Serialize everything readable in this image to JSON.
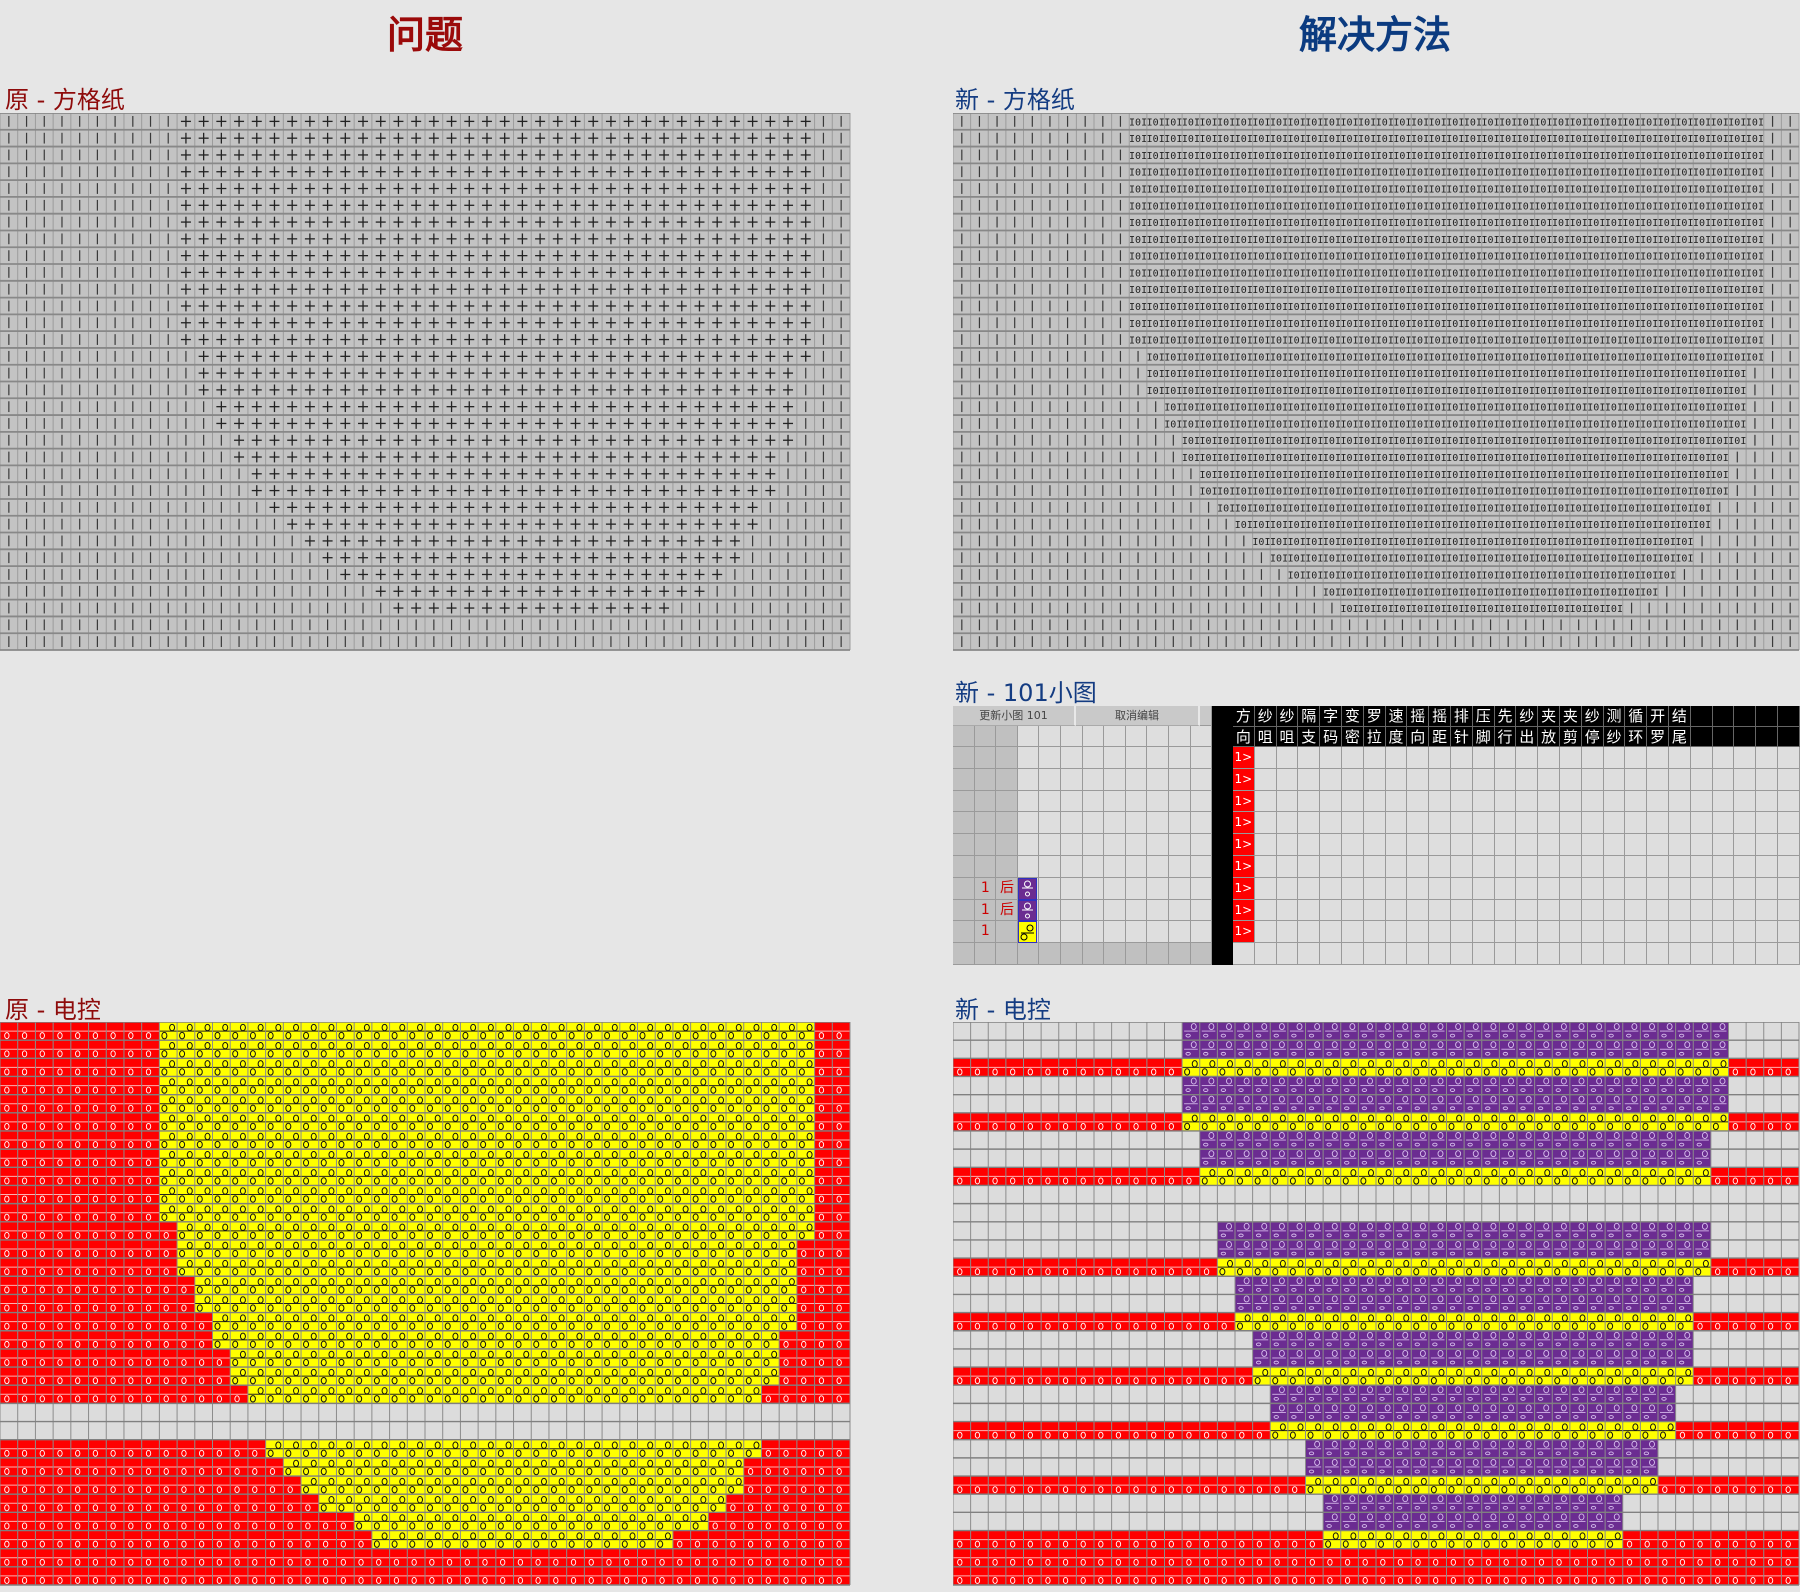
{
  "titles": {
    "problem": "问题",
    "solution": "解决方法"
  },
  "colors": {
    "background": "#e6e6e6",
    "problem_title": "#9b0a0a",
    "solution_title": "#0b3b80",
    "grid_cell": "#c3c3c3",
    "red": "#ff0000",
    "yellow": "#ffff00",
    "purple": "#6b2c91",
    "empty": "#dcdcdc"
  },
  "orig_grid": {
    "label": "原 - 方格纸",
    "inside_symbol": "+",
    "outside_symbol": "|",
    "rows": [
      [
        10,
        45
      ],
      [
        10,
        45
      ],
      [
        10,
        45
      ],
      [
        10,
        45
      ],
      [
        10,
        45
      ],
      [
        10,
        45
      ],
      [
        10,
        45
      ],
      [
        10,
        45
      ],
      [
        10,
        45
      ],
      [
        10,
        45
      ],
      [
        10,
        45
      ],
      [
        10,
        45
      ],
      [
        10,
        45
      ],
      [
        10,
        45
      ],
      [
        11,
        45
      ],
      [
        11,
        44
      ],
      [
        11,
        44
      ],
      [
        12,
        44
      ],
      [
        12,
        44
      ],
      [
        13,
        44
      ],
      [
        13,
        43
      ],
      [
        14,
        43
      ],
      [
        14,
        43
      ],
      [
        15,
        42
      ],
      [
        16,
        42
      ],
      [
        17,
        41
      ],
      [
        18,
        41
      ],
      [
        19,
        40
      ],
      [
        21,
        39
      ],
      [
        22,
        37
      ],
      null,
      null
    ]
  },
  "new_grid": {
    "label": "新 - 方格纸",
    "inside_symbol": "I0I",
    "outside_symbol": "|",
    "rows": [
      [
        10,
        45
      ],
      [
        10,
        45
      ],
      [
        10,
        45
      ],
      [
        10,
        45
      ],
      [
        10,
        45
      ],
      [
        10,
        45
      ],
      [
        10,
        45
      ],
      [
        10,
        45
      ],
      [
        10,
        45
      ],
      [
        10,
        45
      ],
      [
        10,
        45
      ],
      [
        10,
        45
      ],
      [
        10,
        45
      ],
      [
        10,
        45
      ],
      [
        11,
        45
      ],
      [
        11,
        44
      ],
      [
        11,
        44
      ],
      [
        12,
        44
      ],
      [
        12,
        44
      ],
      [
        13,
        44
      ],
      [
        13,
        43
      ],
      [
        14,
        43
      ],
      [
        14,
        43
      ],
      [
        15,
        42
      ],
      [
        16,
        42
      ],
      [
        17,
        41
      ],
      [
        18,
        41
      ],
      [
        19,
        40
      ],
      [
        21,
        39
      ],
      [
        22,
        37
      ],
      null,
      null
    ]
  },
  "new_101": {
    "label": "新 - 101小图",
    "buttons": {
      "update": "更新小图 101",
      "cancel": "取消编辑"
    },
    "header_row1": [
      "方",
      "纱",
      "纱",
      "隔",
      "字",
      "变",
      "罗",
      "速",
      "摇",
      "摇",
      "排",
      "压",
      "先",
      "纱",
      "夹",
      "夹",
      "纱",
      "测",
      "循",
      "开",
      "结"
    ],
    "header_row2": [
      "向",
      "咀",
      "咀",
      "支",
      "码",
      "密",
      "拉",
      "度",
      "向",
      "距",
      "针",
      "脚",
      "行",
      "出",
      "放",
      "剪",
      "停",
      "纱",
      "环",
      "罗",
      "尾"
    ],
    "row_marker": "1>",
    "rows": [
      {},
      {},
      {},
      {},
      {},
      {},
      {
        "num": "1",
        "side": "后",
        "color": "purple"
      },
      {
        "num": "1",
        "side": "后",
        "color": "purple"
      },
      {
        "num": "1",
        "color": "yellow"
      }
    ]
  },
  "orig_ctrl": {
    "label": "原 - 电控",
    "courses": [
      [
        "Y",
        9,
        45
      ],
      [
        "Y",
        9,
        45
      ],
      [
        "Y",
        9,
        45
      ],
      [
        "Y",
        9,
        45
      ],
      [
        "Y",
        9,
        45
      ],
      [
        "Y",
        9,
        45
      ],
      [
        "Y",
        9,
        45
      ],
      [
        "Y",
        9,
        45
      ],
      [
        "Y",
        9,
        45
      ],
      [
        "Y",
        9,
        45
      ],
      [
        "Y",
        9,
        45
      ],
      [
        "Y",
        10,
        45
      ],
      [
        "Y",
        10,
        44
      ],
      [
        "Y",
        10,
        44
      ],
      [
        "Y",
        11,
        44
      ],
      [
        "Y",
        11,
        44
      ],
      [
        "Y",
        12,
        44
      ],
      [
        "Y",
        12,
        43
      ],
      [
        "Y",
        13,
        43
      ],
      [
        "Y",
        13,
        43
      ],
      [
        "Y",
        14,
        42
      ],
      [
        "G"
      ],
      [
        "G"
      ],
      [
        "Y",
        15,
        42
      ],
      [
        "Y",
        16,
        41
      ],
      [
        "Y",
        17,
        41
      ],
      [
        "Y",
        18,
        40
      ],
      [
        "Y",
        20,
        39
      ],
      [
        "Y",
        21,
        37
      ],
      [
        "R"
      ],
      [
        "R"
      ]
    ]
  },
  "new_ctrl": {
    "label": "新 - 电控",
    "courses": [
      [
        "P",
        13,
        43
      ],
      [
        "P",
        13,
        43
      ],
      [
        "Y",
        13,
        43
      ],
      [
        "P",
        13,
        43
      ],
      [
        "P",
        13,
        43
      ],
      [
        "Y",
        13,
        43
      ],
      [
        "P",
        14,
        42
      ],
      [
        "P",
        14,
        42
      ],
      [
        "Y",
        14,
        42
      ],
      [
        "G"
      ],
      [
        "G"
      ],
      [
        "P",
        15,
        42
      ],
      [
        "P",
        15,
        42
      ],
      [
        "Y",
        15,
        42
      ],
      [
        "P",
        16,
        41
      ],
      [
        "P",
        16,
        41
      ],
      [
        "Y",
        16,
        41
      ],
      [
        "P",
        17,
        41
      ],
      [
        "P",
        17,
        41
      ],
      [
        "Y",
        17,
        41
      ],
      [
        "P",
        18,
        40
      ],
      [
        "P",
        18,
        40
      ],
      [
        "Y",
        18,
        40
      ],
      [
        "P",
        20,
        39
      ],
      [
        "P",
        20,
        39
      ],
      [
        "Y",
        20,
        39
      ],
      [
        "P",
        21,
        37
      ],
      [
        "P",
        21,
        37
      ],
      [
        "Y",
        21,
        37
      ],
      [
        "R"
      ],
      [
        "R"
      ]
    ]
  }
}
